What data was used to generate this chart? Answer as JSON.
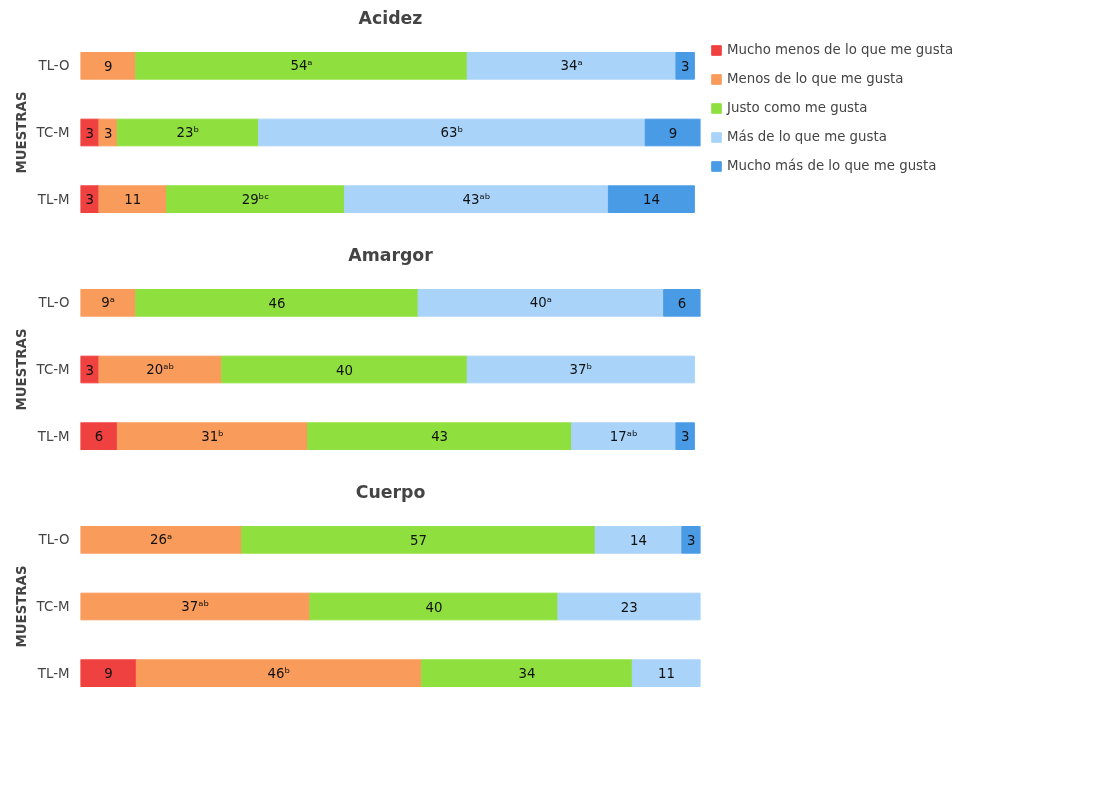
{
  "chart_data": [
    {
      "type": "bar",
      "orientation": "horizontal",
      "stacked": true,
      "title": "Acidez",
      "ylabel": "MUESTRAS",
      "categories": [
        "TL-O",
        "TC-M",
        "TL-M"
      ],
      "legend": "right",
      "grid": false,
      "series": [
        {
          "name": "Mucho menos de lo que me gusta",
          "color": "#f04141",
          "values": [
            null,
            3,
            3
          ],
          "value_labels": [
            null,
            "3",
            "3"
          ]
        },
        {
          "name": "Menos de lo que me gusta",
          "color": "#f99b5b",
          "values": [
            9,
            3,
            11
          ],
          "value_labels": [
            "9",
            "3",
            "11"
          ]
        },
        {
          "name": "Justo como me gusta",
          "color": "#8fe03f",
          "values": [
            54,
            23,
            29
          ],
          "value_labels": [
            "54ᵃ",
            "23ᵇ",
            "29ᵇᶜ"
          ]
        },
        {
          "name": "Más de lo que me gusta",
          "color": "#a9d3f9",
          "values": [
            34,
            63,
            43
          ],
          "value_labels": [
            "34ᵃ",
            "63ᵇ",
            "43ᵃᵇ"
          ]
        },
        {
          "name": "Mucho más de lo que me gusta",
          "color": "#4a9be6",
          "values": [
            3,
            9,
            14
          ],
          "value_labels": [
            "3",
            "9",
            "14"
          ]
        }
      ]
    },
    {
      "type": "bar",
      "orientation": "horizontal",
      "stacked": true,
      "title": "Amargor",
      "ylabel": "MUESTRAS",
      "categories": [
        "TL-O",
        "TC-M",
        "TL-M"
      ],
      "grid": false,
      "series": [
        {
          "color": "#f04141",
          "values": [
            null,
            3,
            6
          ],
          "value_labels": [
            null,
            "3",
            "6"
          ]
        },
        {
          "color": "#f99b5b",
          "values": [
            9,
            20,
            31
          ],
          "value_labels": [
            "9ᵃ",
            "20ᵃᵇ",
            "31ᵇ"
          ]
        },
        {
          "color": "#8fe03f",
          "values": [
            46,
            40,
            43
          ],
          "value_labels": [
            "46",
            "40",
            "43"
          ]
        },
        {
          "color": "#a9d3f9",
          "values": [
            40,
            37,
            17
          ],
          "value_labels": [
            "40ᵃ",
            "37ᵇ",
            "17ᵃᵇ"
          ]
        },
        {
          "color": "#4a9be6",
          "values": [
            6,
            null,
            3
          ],
          "value_labels": [
            "6",
            null,
            "3"
          ]
        }
      ]
    },
    {
      "type": "bar",
      "orientation": "horizontal",
      "stacked": true,
      "title": "Cuerpo",
      "ylabel": "MUESTRAS",
      "categories": [
        "TL-O",
        "TC-M",
        "TL-M"
      ],
      "grid": false,
      "series": [
        {
          "color": "#f04141",
          "values": [
            null,
            null,
            9
          ],
          "value_labels": [
            null,
            null,
            "9"
          ]
        },
        {
          "color": "#f99b5b",
          "values": [
            26,
            37,
            46
          ],
          "value_labels": [
            "26ᵃ",
            "37ᵃᵇ",
            "46ᵇ"
          ]
        },
        {
          "color": "#8fe03f",
          "values": [
            57,
            40,
            34
          ],
          "value_labels": [
            "57",
            "40",
            "34"
          ]
        },
        {
          "color": "#a9d3f9",
          "values": [
            14,
            23,
            11
          ],
          "value_labels": [
            "14",
            "23",
            "11"
          ]
        },
        {
          "color": "#4a9be6",
          "values": [
            3,
            null,
            null
          ],
          "value_labels": [
            "3",
            null,
            null
          ]
        }
      ]
    }
  ]
}
